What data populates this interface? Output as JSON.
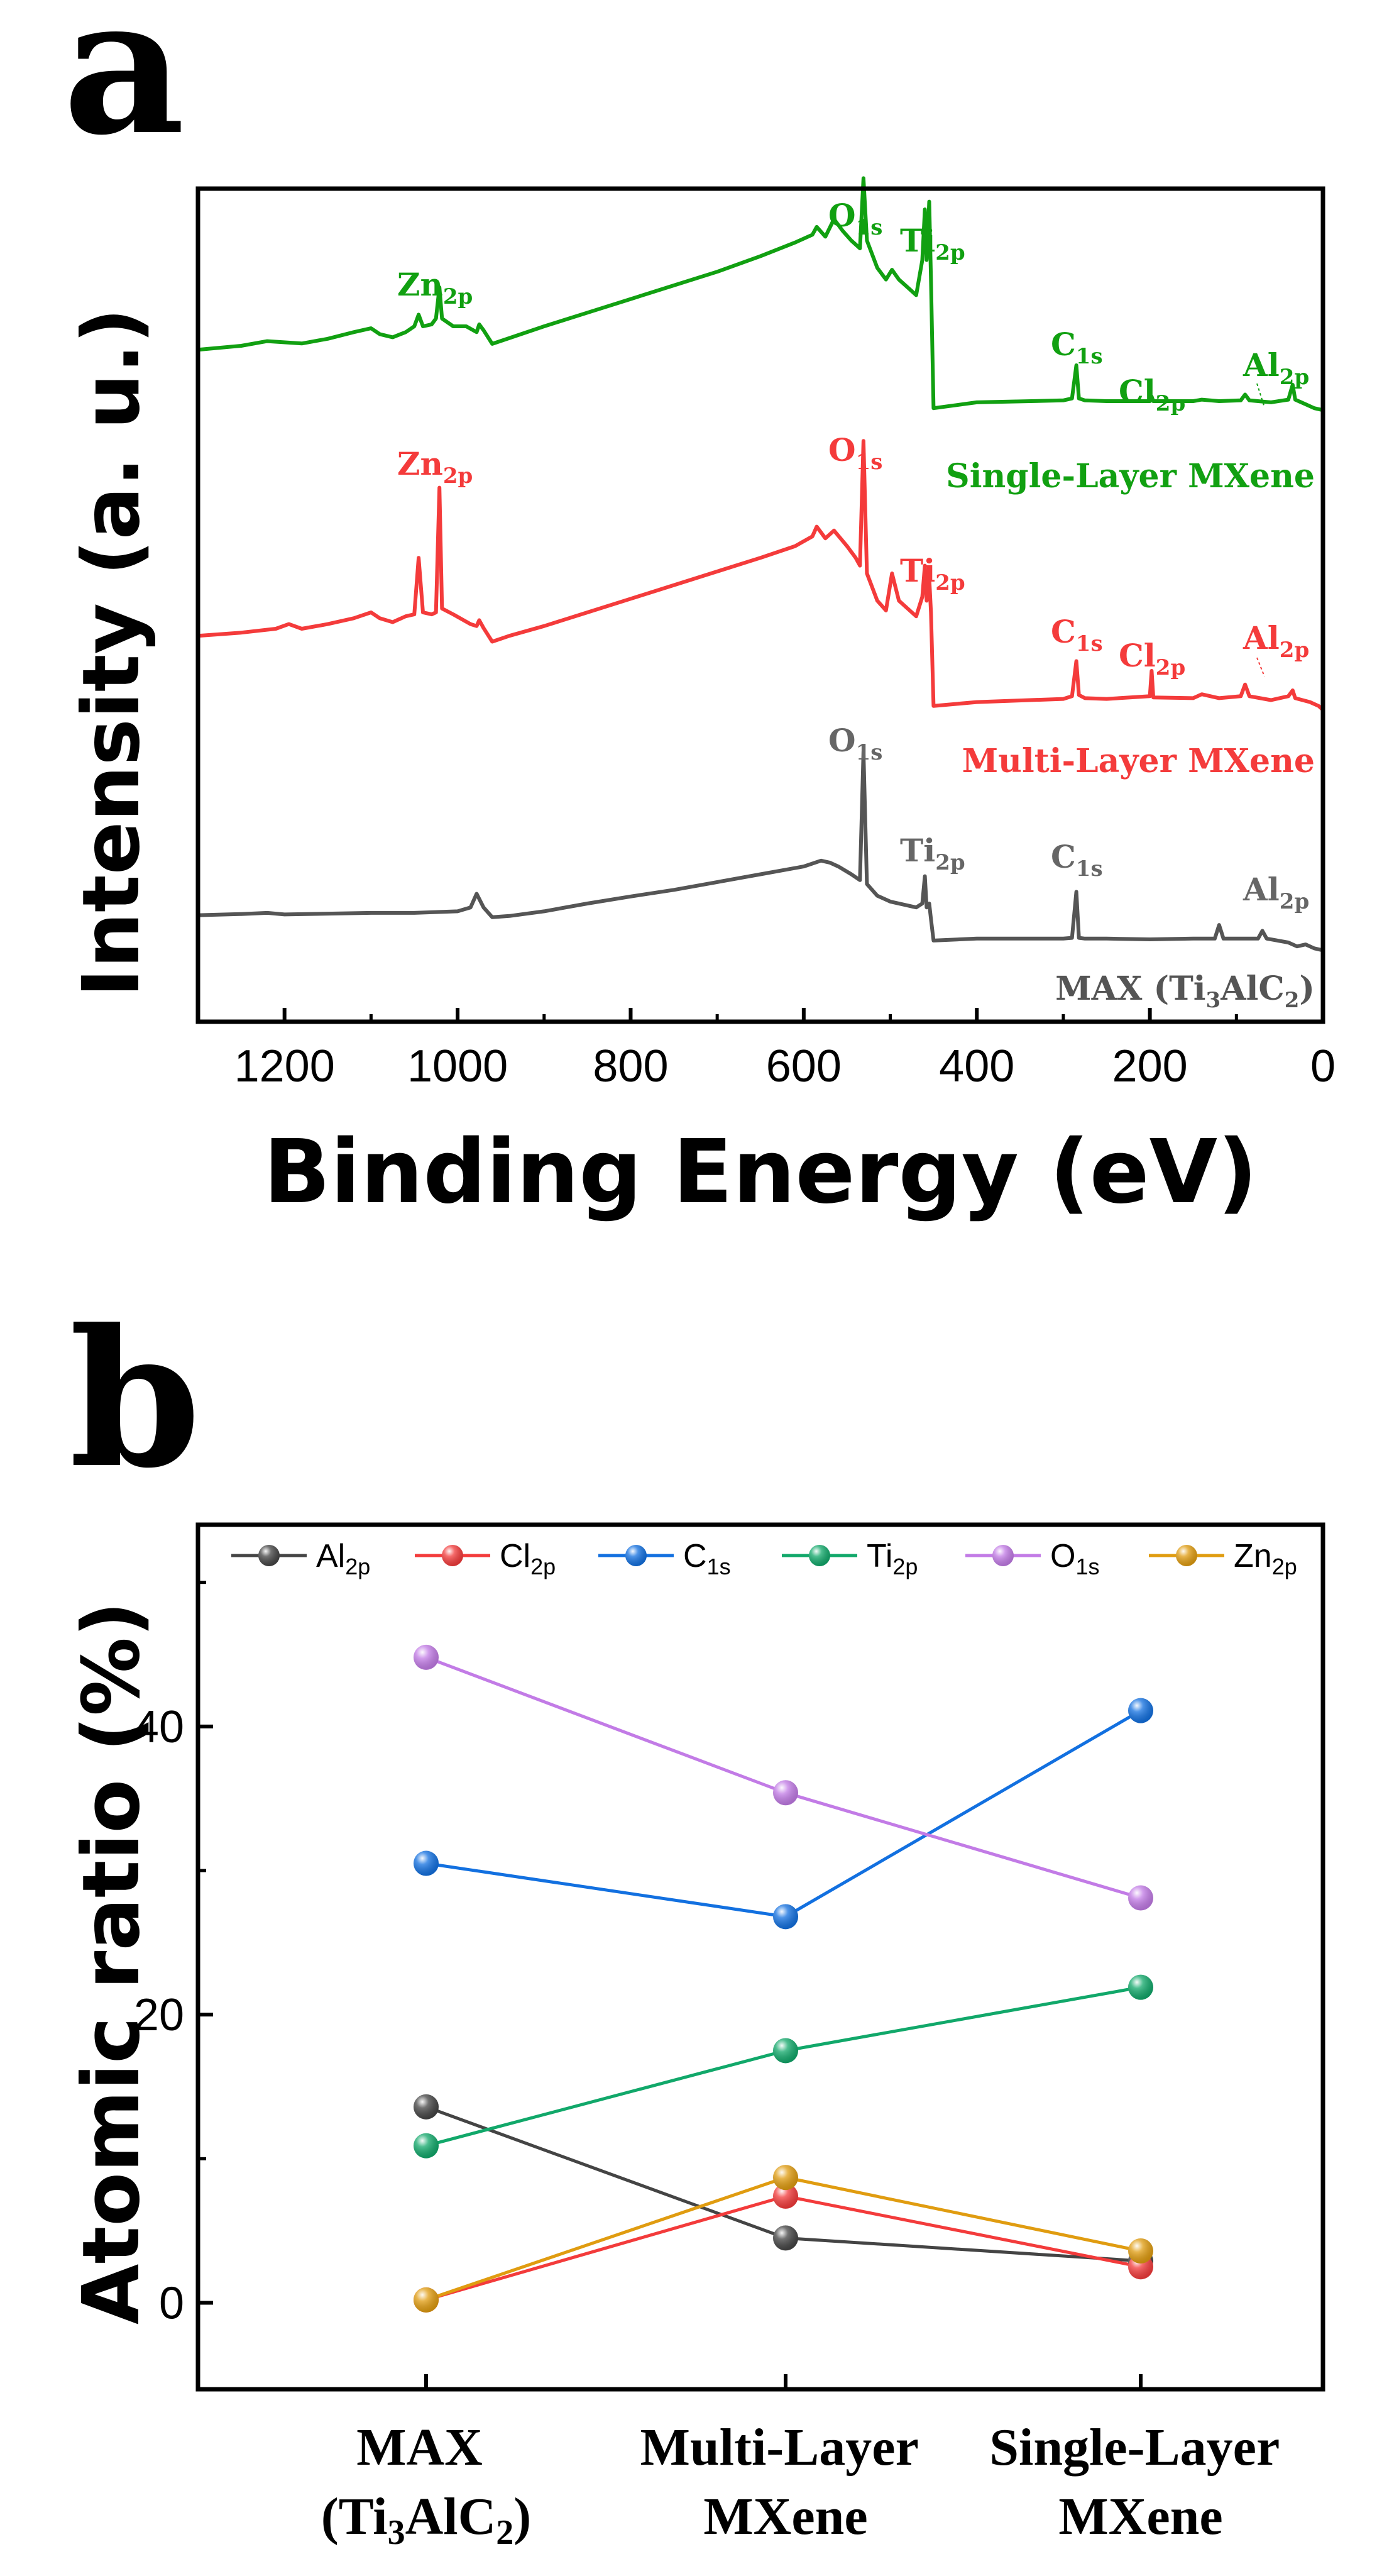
{
  "panel_a": {
    "label": "a",
    "colors": {
      "single": "#11a011",
      "multi": "#f43b3b",
      "max": "#555555"
    },
    "peaks": {
      "single": [
        {
          "main": "Zn",
          "sub": "2p"
        },
        {
          "main": "O",
          "sub": "1s"
        },
        {
          "main": "Ti",
          "sub": "2p"
        },
        {
          "main": "C",
          "sub": "1s"
        },
        {
          "main": "Cl",
          "sub": "2p"
        },
        {
          "main": "Al",
          "sub": "2p"
        }
      ],
      "multi": [
        {
          "main": "Zn",
          "sub": "2p"
        },
        {
          "main": "O",
          "sub": "1s"
        },
        {
          "main": "Ti",
          "sub": "2p"
        },
        {
          "main": "C",
          "sub": "1s"
        },
        {
          "main": "Cl",
          "sub": "2p"
        },
        {
          "main": "Al",
          "sub": "2p"
        }
      ],
      "max": [
        {
          "main": "O",
          "sub": "1s"
        },
        {
          "main": "Ti",
          "sub": "2p"
        },
        {
          "main": "C",
          "sub": "1s"
        },
        {
          "main": "Al",
          "sub": "2p"
        }
      ]
    },
    "series_labels": {
      "single": "Single-Layer MXene",
      "multi": "Multi-Layer MXene",
      "max_pre": "MAX (Ti",
      "max_s1": "3",
      "max_mid": "AlC",
      "max_s2": "2",
      "max_post": ")"
    }
  },
  "panel_b": {
    "label": "b",
    "legend": [
      {
        "main": "Al",
        "sub": "2p",
        "color": "#444444"
      },
      {
        "main": "Cl",
        "sub": "2p",
        "color": "#f33b3b"
      },
      {
        "main": "C",
        "sub": "1s",
        "color": "#1270e0"
      },
      {
        "main": "Ti",
        "sub": "2p",
        "color": "#11a86a"
      },
      {
        "main": "O",
        "sub": "1s",
        "color": "#c27be6"
      },
      {
        "main": "Zn",
        "sub": "2p",
        "color": "#e09c10"
      }
    ],
    "categories": [
      {
        "l1": "MAX",
        "l2_pre": "(Ti",
        "l2_s1": "3",
        "l2_mid": "AlC",
        "l2_s2": "2",
        "l2_post": ")"
      },
      {
        "l1": "Multi-Layer",
        "l2": "MXene"
      },
      {
        "l1": "Single-Layer",
        "l2": "MXene"
      }
    ]
  },
  "chart_data": [
    {
      "type": "line",
      "title": "",
      "xlabel": "Binding Energy (eV)",
      "ylabel": "Intensity (a. u.)",
      "xlim": [
        1300,
        0
      ],
      "x_reversed": true,
      "xticks": [
        1200,
        1000,
        800,
        600,
        400,
        200,
        0
      ],
      "y_ticks_visible": false,
      "series": [
        {
          "name": "Single-Layer MXene",
          "color": "#11a011",
          "points": [
            [
              1300,
              0.24
            ],
            [
              1250,
              0.25
            ],
            [
              1220,
              0.262
            ],
            [
              1180,
              0.256
            ],
            [
              1150,
              0.268
            ],
            [
              1120,
              0.285
            ],
            [
              1100,
              0.295
            ],
            [
              1090,
              0.28
            ],
            [
              1075,
              0.272
            ],
            [
              1060,
              0.285
            ],
            [
              1050,
              0.3
            ],
            [
              1045,
              0.33
            ],
            [
              1040,
              0.3
            ],
            [
              1030,
              0.305
            ],
            [
              1025,
              0.32
            ],
            [
              1021,
              0.4
            ],
            [
              1018,
              0.32
            ],
            [
              1005,
              0.3
            ],
            [
              990,
              0.3
            ],
            [
              978,
              0.285
            ],
            [
              975,
              0.305
            ],
            [
              970,
              0.29
            ],
            [
              960,
              0.255
            ],
            [
              940,
              0.27
            ],
            [
              900,
              0.3
            ],
            [
              850,
              0.335
            ],
            [
              800,
              0.37
            ],
            [
              750,
              0.405
            ],
            [
              700,
              0.44
            ],
            [
              650,
              0.48
            ],
            [
              610,
              0.515
            ],
            [
              590,
              0.535
            ],
            [
              585,
              0.555
            ],
            [
              575,
              0.53
            ],
            [
              565,
              0.575
            ],
            [
              555,
              0.545
            ],
            [
              545,
              0.52
            ],
            [
              535,
              0.5
            ],
            [
              531,
              0.68
            ],
            [
              527,
              0.52
            ],
            [
              515,
              0.45
            ],
            [
              505,
              0.42
            ],
            [
              498,
              0.445
            ],
            [
              490,
              0.42
            ],
            [
              480,
              0.4
            ],
            [
              470,
              0.38
            ],
            [
              463,
              0.47
            ],
            [
              460,
              0.6
            ],
            [
              458,
              0.47
            ],
            [
              455,
              0.62
            ],
            [
              453,
              0.42
            ],
            [
              450,
              0.09
            ],
            [
              400,
              0.105
            ],
            [
              300,
              0.11
            ],
            [
              290,
              0.115
            ],
            [
              285,
              0.2
            ],
            [
              282,
              0.115
            ],
            [
              275,
              0.11
            ],
            [
              250,
              0.108
            ],
            [
              200,
              0.108
            ],
            [
              198,
              0.12
            ],
            [
              196,
              0.108
            ],
            [
              150,
              0.108
            ],
            [
              140,
              0.112
            ],
            [
              120,
              0.108
            ],
            [
              95,
              0.11
            ],
            [
              90,
              0.125
            ],
            [
              85,
              0.11
            ],
            [
              60,
              0.105
            ],
            [
              40,
              0.112
            ],
            [
              35,
              0.15
            ],
            [
              32,
              0.112
            ],
            [
              20,
              0.1
            ],
            [
              10,
              0.09
            ],
            [
              0,
              0.085
            ]
          ]
        },
        {
          "name": "Multi-Layer MXene",
          "color": "#f43b3b",
          "points": [
            [
              1300,
              0.24
            ],
            [
              1250,
              0.248
            ],
            [
              1210,
              0.258
            ],
            [
              1195,
              0.27
            ],
            [
              1180,
              0.258
            ],
            [
              1150,
              0.27
            ],
            [
              1120,
              0.285
            ],
            [
              1100,
              0.3
            ],
            [
              1090,
              0.285
            ],
            [
              1075,
              0.275
            ],
            [
              1060,
              0.29
            ],
            [
              1050,
              0.295
            ],
            [
              1045,
              0.44
            ],
            [
              1040,
              0.3
            ],
            [
              1030,
              0.295
            ],
            [
              1025,
              0.3
            ],
            [
              1021,
              0.62
            ],
            [
              1018,
              0.31
            ],
            [
              1005,
              0.295
            ],
            [
              985,
              0.27
            ],
            [
              978,
              0.265
            ],
            [
              975,
              0.28
            ],
            [
              970,
              0.26
            ],
            [
              960,
              0.225
            ],
            [
              940,
              0.24
            ],
            [
              900,
              0.265
            ],
            [
              850,
              0.3
            ],
            [
              800,
              0.335
            ],
            [
              750,
              0.37
            ],
            [
              700,
              0.405
            ],
            [
              650,
              0.44
            ],
            [
              610,
              0.47
            ],
            [
              590,
              0.495
            ],
            [
              585,
              0.52
            ],
            [
              575,
              0.49
            ],
            [
              565,
              0.51
            ],
            [
              550,
              0.47
            ],
            [
              540,
              0.44
            ],
            [
              535,
              0.42
            ],
            [
              531,
              0.74
            ],
            [
              527,
              0.4
            ],
            [
              515,
              0.33
            ],
            [
              505,
              0.305
            ],
            [
              498,
              0.4
            ],
            [
              490,
              0.33
            ],
            [
              480,
              0.31
            ],
            [
              470,
              0.29
            ],
            [
              463,
              0.34
            ],
            [
              460,
              0.42
            ],
            [
              458,
              0.33
            ],
            [
              455,
              0.39
            ],
            [
              453,
              0.3
            ],
            [
              450,
              0.06
            ],
            [
              400,
              0.07
            ],
            [
              300,
              0.078
            ],
            [
              290,
              0.085
            ],
            [
              285,
              0.175
            ],
            [
              282,
              0.088
            ],
            [
              275,
              0.08
            ],
            [
              250,
              0.078
            ],
            [
              200,
              0.085
            ],
            [
              198,
              0.15
            ],
            [
              196,
              0.082
            ],
            [
              150,
              0.08
            ],
            [
              140,
              0.09
            ],
            [
              120,
              0.08
            ],
            [
              95,
              0.085
            ],
            [
              90,
              0.115
            ],
            [
              85,
              0.085
            ],
            [
              60,
              0.075
            ],
            [
              40,
              0.085
            ],
            [
              35,
              0.1
            ],
            [
              32,
              0.08
            ],
            [
              15,
              0.07
            ],
            [
              5,
              0.06
            ],
            [
              0,
              0.05
            ]
          ]
        },
        {
          "name": "MAX (Ti3AlC2)",
          "color": "#555555",
          "points": [
            [
              1300,
              0.12
            ],
            [
              1250,
              0.123
            ],
            [
              1220,
              0.126
            ],
            [
              1200,
              0.122
            ],
            [
              1150,
              0.124
            ],
            [
              1100,
              0.126
            ],
            [
              1050,
              0.126
            ],
            [
              1000,
              0.13
            ],
            [
              985,
              0.14
            ],
            [
              978,
              0.175
            ],
            [
              970,
              0.14
            ],
            [
              960,
              0.115
            ],
            [
              940,
              0.118
            ],
            [
              900,
              0.13
            ],
            [
              850,
              0.15
            ],
            [
              800,
              0.168
            ],
            [
              750,
              0.185
            ],
            [
              700,
              0.205
            ],
            [
              650,
              0.225
            ],
            [
              600,
              0.245
            ],
            [
              580,
              0.26
            ],
            [
              570,
              0.255
            ],
            [
              560,
              0.245
            ],
            [
              545,
              0.225
            ],
            [
              535,
              0.21
            ],
            [
              531,
              0.54
            ],
            [
              527,
              0.2
            ],
            [
              515,
              0.17
            ],
            [
              500,
              0.155
            ],
            [
              470,
              0.14
            ],
            [
              463,
              0.15
            ],
            [
              460,
              0.22
            ],
            [
              458,
              0.14
            ],
            [
              455,
              0.15
            ],
            [
              453,
              0.11
            ],
            [
              450,
              0.055
            ],
            [
              400,
              0.06
            ],
            [
              300,
              0.06
            ],
            [
              290,
              0.062
            ],
            [
              285,
              0.18
            ],
            [
              282,
              0.062
            ],
            [
              275,
              0.06
            ],
            [
              250,
              0.06
            ],
            [
              200,
              0.058
            ],
            [
              150,
              0.06
            ],
            [
              125,
              0.06
            ],
            [
              120,
              0.095
            ],
            [
              115,
              0.06
            ],
            [
              75,
              0.06
            ],
            [
              70,
              0.08
            ],
            [
              65,
              0.06
            ],
            [
              40,
              0.05
            ],
            [
              30,
              0.04
            ],
            [
              20,
              0.045
            ],
            [
              10,
              0.035
            ],
            [
              0,
              0.03
            ]
          ]
        }
      ]
    },
    {
      "type": "line",
      "title": "",
      "xlabel": "",
      "ylabel": "Atomic ratio (%)",
      "categories": [
        "MAX (Ti3AlC2)",
        "Multi-Layer MXene",
        "Single-Layer MXene"
      ],
      "ylim": [
        -6,
        54
      ],
      "yticks": [
        0,
        20,
        40
      ],
      "series": [
        {
          "name": "Al2p",
          "color": "#444444",
          "values": [
            13.6,
            4.5,
            2.9
          ]
        },
        {
          "name": "Cl2p",
          "color": "#f33b3b",
          "values": [
            0.2,
            7.4,
            2.5
          ]
        },
        {
          "name": "C1s",
          "color": "#1270e0",
          "values": [
            30.5,
            26.8,
            41.1
          ]
        },
        {
          "name": "Ti2p",
          "color": "#11a86a",
          "values": [
            10.9,
            17.5,
            21.9
          ]
        },
        {
          "name": "O1s",
          "color": "#c27be6",
          "values": [
            44.8,
            35.4,
            28.1
          ]
        },
        {
          "name": "Zn2p",
          "color": "#e09c10",
          "values": [
            0.2,
            8.7,
            3.6
          ]
        }
      ]
    }
  ]
}
